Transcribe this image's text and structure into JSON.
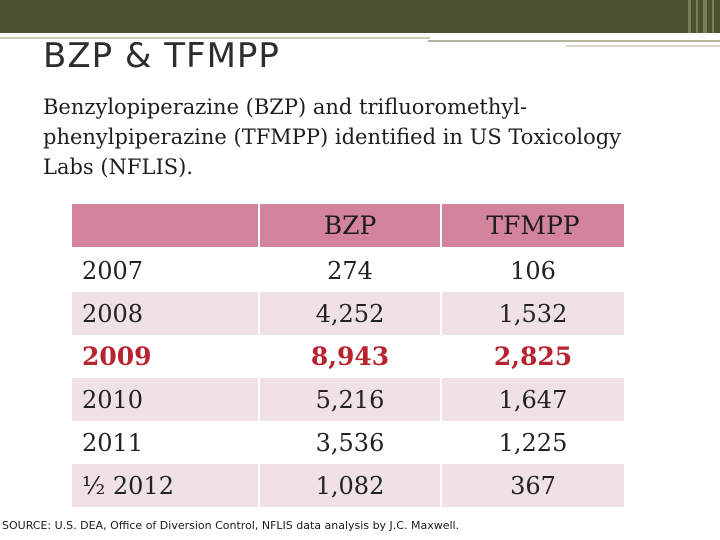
{
  "slide": {
    "title": "BZP & TFMPP",
    "description": "Benzylopiperazine (BZP) and trifluoromethyl-phenylpiperazine (TFMPP) identified in US Toxicology Labs (NFLIS).",
    "source": "SOURCE: U.S. DEA, Office of Diversion Control,  NFLIS data analysis by J.C. Maxwell."
  },
  "table": {
    "header": {
      "year": "",
      "bzp": "BZP",
      "tfmpp": "TFMPP"
    },
    "rows": [
      {
        "year": "2007",
        "bzp": "274",
        "tfmpp": "106"
      },
      {
        "year": "2008",
        "bzp": "4,252",
        "tfmpp": "1,532"
      },
      {
        "year": "2009",
        "bzp": "8,943",
        "tfmpp": "2,825"
      },
      {
        "year": "2010",
        "bzp": "5,216",
        "tfmpp": "1,647"
      },
      {
        "year": "2011",
        "bzp": "3,536",
        "tfmpp": "1,225"
      },
      {
        "year": "½ 2012",
        "bzp": "1,082",
        "tfmpp": "367"
      }
    ]
  },
  "colors": {
    "header_bg": "#d4849a",
    "band_bg": "#f0e1e5",
    "highlight_text": "#b8232f",
    "top_bar": "#4d5330"
  }
}
